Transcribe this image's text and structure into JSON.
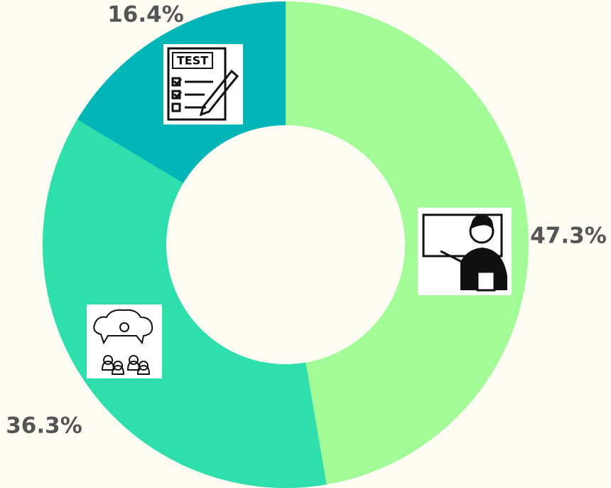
{
  "chart_data": {
    "type": "donut",
    "values": [
      47.3,
      36.3,
      16.4
    ],
    "value_labels": [
      "47.3%",
      "36.3%",
      "16.4%"
    ],
    "colors": [
      "#a3fb98",
      "#2edfab",
      "#02b5b6"
    ],
    "icon_text": "TEST"
  }
}
